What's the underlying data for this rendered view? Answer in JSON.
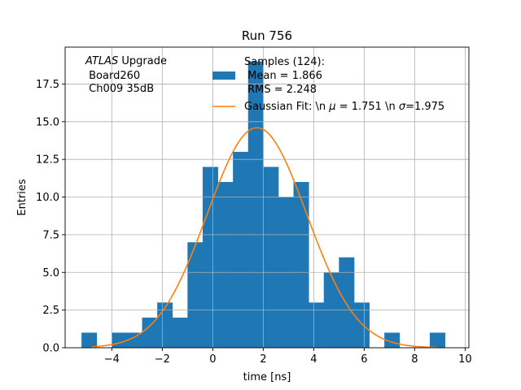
{
  "chart_data": {
    "type": "bar",
    "title": "Run 756",
    "xlabel": "time [ns]",
    "ylabel": "Entries",
    "xlim": [
      -5.85,
      10.15
    ],
    "ylim": [
      0,
      19.95
    ],
    "grid": true,
    "x_ticks": [
      -4,
      -2,
      0,
      2,
      4,
      6,
      8,
      10
    ],
    "x_tick_labels": [
      "−4",
      "−2",
      "0",
      "2",
      "4",
      "6",
      "8",
      "10"
    ],
    "y_ticks": [
      0,
      2.5,
      5,
      7.5,
      10,
      12.5,
      15,
      17.5
    ],
    "y_tick_labels": [
      "0.0",
      "2.5",
      "5.0",
      "7.5",
      "10.0",
      "12.5",
      "15.0",
      "17.5"
    ],
    "bin_edges": [
      -5.2,
      -4.6,
      -4.0,
      -3.4,
      -2.8,
      -2.2,
      -1.6,
      -1.0,
      -0.4,
      0.2,
      0.8,
      1.4,
      2.0,
      2.6,
      3.2,
      3.8,
      4.4,
      5.0,
      5.6,
      6.2,
      6.8,
      7.4,
      8.0,
      8.6,
      9.2
    ],
    "bin_counts": [
      1,
      0,
      1,
      1,
      2,
      3,
      2,
      7,
      12,
      11,
      13,
      19,
      12,
      10,
      11,
      3,
      5,
      6,
      3,
      0,
      1,
      0,
      0,
      1
    ],
    "series": [
      {
        "name": "Samples (124):\n Mean = 1.866\n RMS = 2.248",
        "kind": "histogram",
        "color": "#1f77b4"
      },
      {
        "name": "Gaussian Fit: \\n $\\mu$ = 1.751 \\n $\\sigma$=1.975",
        "kind": "line",
        "color": "#ff7f0e",
        "amplitude": 14.6,
        "mu": 1.751,
        "sigma": 1.975,
        "x_range": [
          -4.8,
          8.9
        ]
      }
    ],
    "legend_placement": "upper-center",
    "legend_entries": {
      "histogram_lines": [
        "Samples (124):",
        " Mean = 1.866",
        " RMS = 2.248"
      ],
      "fit": {
        "prefix": "Gaussian Fit: \\n ",
        "mu_symbol": "μ",
        "mu_text": " = 1.751 \\n ",
        "sigma_symbol": "σ",
        "sigma_text": "=1.975"
      }
    },
    "annotation": {
      "italic": "ATLAS",
      "rest": " Upgrade",
      "line2": " Board260",
      "line3": " Ch009 35dB"
    }
  }
}
